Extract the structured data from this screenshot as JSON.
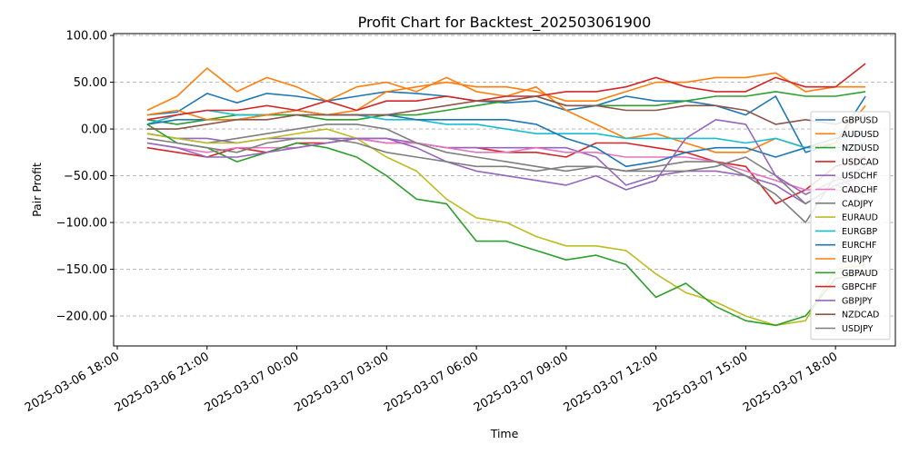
{
  "chart_data": {
    "type": "line",
    "title": "Profit Chart for Backtest_202503061900",
    "xlabel": "Time",
    "ylabel": "Pair Profit",
    "x_axis": {
      "type": "datetime",
      "range": [
        "2025-03-06 18:00",
        "2025-03-07 20:00"
      ],
      "ticks": [
        "2025-03-06 18:00",
        "2025-03-06 21:00",
        "2025-03-07 00:00",
        "2025-03-07 03:00",
        "2025-03-07 06:00",
        "2025-03-07 09:00",
        "2025-03-07 12:00",
        "2025-03-07 15:00",
        "2025-03-07 18:00"
      ],
      "tick_labels": [
        "2025-03-06 18:00",
        "2025-03-06 21:00",
        "2025-03-07 00:00",
        "2025-03-07 03:00",
        "2025-03-07 06:00",
        "2025-03-07 09:00",
        "2025-03-07 12:00",
        "2025-03-07 15:00",
        "2025-03-07 18:00"
      ]
    },
    "ylim": [
      -232,
      102
    ],
    "yticks": [
      -200,
      -150,
      -100,
      -50,
      0,
      50,
      100
    ],
    "ytick_labels": [
      "−200.00",
      "−150.00",
      "−100.00",
      "−50.00",
      "0.00",
      "50.00",
      "100.00"
    ],
    "grid": true,
    "legend_position": "lower-right",
    "x": [
      "2025-03-06 19:00",
      "2025-03-06 20:00",
      "2025-03-06 21:00",
      "2025-03-06 22:00",
      "2025-03-06 23:00",
      "2025-03-07 00:00",
      "2025-03-07 01:00",
      "2025-03-07 02:00",
      "2025-03-07 03:00",
      "2025-03-07 04:00",
      "2025-03-07 05:00",
      "2025-03-07 06:00",
      "2025-03-07 07:00",
      "2025-03-07 08:00",
      "2025-03-07 09:00",
      "2025-03-07 10:00",
      "2025-03-07 11:00",
      "2025-03-07 12:00",
      "2025-03-07 13:00",
      "2025-03-07 14:00",
      "2025-03-07 15:00",
      "2025-03-07 16:00",
      "2025-03-07 17:00",
      "2025-03-07 18:00",
      "2025-03-07 19:00"
    ],
    "series": [
      {
        "name": "GBPUSD",
        "color": "#1f77b4",
        "values": [
          15,
          18,
          38,
          28,
          38,
          35,
          30,
          35,
          40,
          38,
          35,
          30,
          28,
          30,
          20,
          25,
          35,
          30,
          30,
          25,
          15,
          35,
          -25,
          -15,
          35
        ]
      },
      {
        "name": "AUDUSD",
        "color": "#ff7f0e",
        "values": [
          20,
          35,
          65,
          40,
          55,
          45,
          30,
          45,
          50,
          40,
          55,
          40,
          35,
          45,
          20,
          5,
          -10,
          -5,
          -15,
          -25,
          -25,
          -10,
          -20,
          -15,
          25
        ]
      },
      {
        "name": "NZDUSD",
        "color": "#2ca02c",
        "values": [
          10,
          5,
          10,
          15,
          15,
          15,
          10,
          10,
          15,
          15,
          20,
          25,
          30,
          35,
          25,
          25,
          25,
          25,
          30,
          35,
          35,
          40,
          35,
          35,
          40
        ]
      },
      {
        "name": "USDCAD",
        "color": "#d62728",
        "values": [
          -20,
          -25,
          -30,
          -20,
          -25,
          -15,
          -15,
          -10,
          -15,
          -15,
          -20,
          -20,
          -25,
          -25,
          -30,
          -15,
          -15,
          -20,
          -25,
          -35,
          -40,
          -80,
          -65,
          -40,
          -30
        ]
      },
      {
        "name": "USDCHF",
        "color": "#9467bd",
        "values": [
          -5,
          -10,
          -10,
          -15,
          -10,
          -10,
          -10,
          -10,
          -10,
          -15,
          -20,
          -20,
          -20,
          -20,
          -20,
          -30,
          -60,
          -50,
          -45,
          -45,
          -50,
          -60,
          -80,
          -60,
          -50
        ]
      },
      {
        "name": "CADCHF",
        "color": "#e377c2",
        "values": [
          -15,
          -20,
          -25,
          -20,
          -20,
          -20,
          -15,
          -10,
          -15,
          -15,
          -20,
          -25,
          -25,
          -20,
          -25,
          -25,
          -30,
          -30,
          -30,
          -35,
          -45,
          -55,
          -65,
          -65,
          -70
        ]
      },
      {
        "name": "CADJPY",
        "color": "#7f7f7f",
        "values": [
          -5,
          -10,
          -15,
          -10,
          -5,
          0,
          5,
          5,
          0,
          -15,
          -25,
          -30,
          -35,
          -40,
          -45,
          -40,
          -45,
          -45,
          -45,
          -40,
          -30,
          -50,
          -80,
          -60,
          -70
        ]
      },
      {
        "name": "EURAUD",
        "color": "#bcbd22",
        "values": [
          -5,
          -10,
          -15,
          -15,
          -10,
          -5,
          0,
          -10,
          -30,
          -45,
          -75,
          -95,
          -100,
          -115,
          -125,
          -125,
          -130,
          -155,
          -175,
          -185,
          -200,
          -210,
          -205,
          -150,
          -145
        ]
      },
      {
        "name": "EURGBP",
        "color": "#17becf",
        "values": [
          5,
          15,
          20,
          15,
          15,
          20,
          15,
          15,
          10,
          10,
          5,
          5,
          0,
          -5,
          -5,
          -5,
          -10,
          -10,
          -10,
          -10,
          -15,
          -10,
          -20,
          -20,
          -15
        ]
      },
      {
        "name": "EURCHF",
        "color": "#1f77b4",
        "values": [
          5,
          10,
          10,
          10,
          15,
          20,
          15,
          15,
          15,
          10,
          10,
          10,
          10,
          5,
          -10,
          -20,
          -40,
          -35,
          -25,
          -20,
          -20,
          -30,
          -20,
          -10,
          -5
        ]
      },
      {
        "name": "EURJPY",
        "color": "#ff7f0e",
        "values": [
          15,
          20,
          10,
          10,
          15,
          20,
          15,
          20,
          40,
          45,
          50,
          45,
          45,
          40,
          30,
          30,
          40,
          50,
          50,
          55,
          55,
          60,
          40,
          45,
          45
        ]
      },
      {
        "name": "GBPAUD",
        "color": "#2ca02c",
        "values": [
          5,
          -15,
          -20,
          -35,
          -25,
          -15,
          -20,
          -30,
          -50,
          -75,
          -80,
          -120,
          -120,
          -130,
          -140,
          -135,
          -145,
          -180,
          -165,
          -190,
          -205,
          -210,
          -200,
          -160,
          -155
        ]
      },
      {
        "name": "GBPCHF",
        "color": "#d62728",
        "values": [
          10,
          15,
          20,
          20,
          25,
          20,
          30,
          20,
          30,
          30,
          35,
          30,
          35,
          35,
          40,
          40,
          45,
          55,
          45,
          40,
          40,
          55,
          45,
          45,
          70
        ]
      },
      {
        "name": "GBPJPY",
        "color": "#9467bd",
        "values": [
          -15,
          -20,
          -30,
          -30,
          -25,
          -20,
          -15,
          -10,
          -10,
          -20,
          -35,
          -45,
          -50,
          -55,
          -60,
          -50,
          -65,
          -55,
          -10,
          10,
          5,
          -50,
          -70,
          -55,
          -40
        ]
      },
      {
        "name": "NZDCAD",
        "color": "#8c564b",
        "values": [
          0,
          0,
          5,
          10,
          10,
          15,
          15,
          15,
          15,
          20,
          25,
          30,
          30,
          35,
          25,
          25,
          20,
          20,
          25,
          25,
          20,
          5,
          10,
          5,
          15
        ]
      },
      {
        "name": "USDJPY",
        "color": "#7f7f7f",
        "values": [
          -10,
          -15,
          -20,
          -25,
          -15,
          -10,
          -10,
          -15,
          -25,
          -30,
          -35,
          -40,
          -40,
          -45,
          -40,
          -40,
          -45,
          -40,
          -35,
          -35,
          -50,
          -70,
          -100,
          -50,
          -70
        ]
      }
    ]
  }
}
